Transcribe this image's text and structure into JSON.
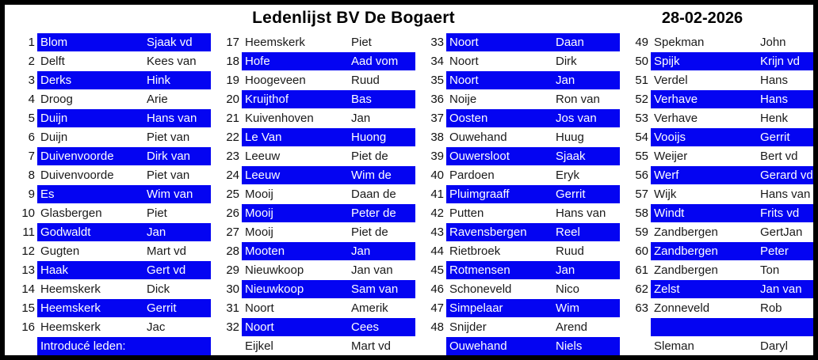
{
  "header": {
    "title": "Ledenlijst BV De Bogaert",
    "date": "28-02-2026"
  },
  "colors": {
    "highlight": "#0404F2",
    "highlight_text": "#FFFFFF",
    "text": "#1A1A1A",
    "border": "#000000"
  },
  "columns": [
    {
      "members": [
        {
          "nr": "1",
          "surname": "Blom",
          "firstname": "Sjaak vd",
          "highlighted": true
        },
        {
          "nr": "2",
          "surname": "Delft",
          "firstname": "Kees van",
          "highlighted": false
        },
        {
          "nr": "3",
          "surname": "Derks",
          "firstname": "Hink",
          "highlighted": true
        },
        {
          "nr": "4",
          "surname": "Droog",
          "firstname": "Arie",
          "highlighted": false
        },
        {
          "nr": "5",
          "surname": "Duijn",
          "firstname": "Hans van",
          "highlighted": true
        },
        {
          "nr": "6",
          "surname": "Duijn",
          "firstname": "Piet van",
          "highlighted": false
        },
        {
          "nr": "7",
          "surname": "Duivenvoorde",
          "firstname": "Dirk van",
          "highlighted": true
        },
        {
          "nr": "8",
          "surname": "Duivenvoorde",
          "firstname": "Piet van",
          "highlighted": false
        },
        {
          "nr": "9",
          "surname": "Es",
          "firstname": "Wim van",
          "highlighted": true
        },
        {
          "nr": "10",
          "surname": "Glasbergen",
          "firstname": "Piet",
          "highlighted": false
        },
        {
          "nr": "11",
          "surname": "Godwaldt",
          "firstname": "Jan",
          "highlighted": true
        },
        {
          "nr": "12",
          "surname": "Gugten",
          "firstname": "Mart vd",
          "highlighted": false
        },
        {
          "nr": "13",
          "surname": "Haak",
          "firstname": "Gert vd",
          "highlighted": true
        },
        {
          "nr": "14",
          "surname": "Heemskerk",
          "firstname": "Dick",
          "highlighted": false
        },
        {
          "nr": "15",
          "surname": "Heemskerk",
          "firstname": "Gerrit",
          "highlighted": true
        },
        {
          "nr": "16",
          "surname": "Heemskerk",
          "firstname": "Jac",
          "highlighted": false
        }
      ],
      "footer": {
        "type": "intro-label",
        "text": "Introducé leden:",
        "highlighted": true
      }
    },
    {
      "members": [
        {
          "nr": "17",
          "surname": "Heemskerk",
          "firstname": "Piet",
          "highlighted": false
        },
        {
          "nr": "18",
          "surname": "Hofe",
          "firstname": "Aad vom",
          "highlighted": true
        },
        {
          "nr": "19",
          "surname": "Hoogeveen",
          "firstname": "Ruud",
          "highlighted": false
        },
        {
          "nr": "20",
          "surname": "Kruijthof",
          "firstname": "Bas",
          "highlighted": true
        },
        {
          "nr": "21",
          "surname": "Kuivenhoven",
          "firstname": "Jan",
          "highlighted": false
        },
        {
          "nr": "22",
          "surname": "Le Van",
          "firstname": "Huong",
          "highlighted": true
        },
        {
          "nr": "23",
          "surname": "Leeuw",
          "firstname": "Piet de",
          "highlighted": false
        },
        {
          "nr": "24",
          "surname": "Leeuw",
          "firstname": "Wim de",
          "highlighted": true
        },
        {
          "nr": "25",
          "surname": "Mooij",
          "firstname": "Daan de",
          "highlighted": false
        },
        {
          "nr": "26",
          "surname": "Mooij",
          "firstname": "Peter de",
          "highlighted": true
        },
        {
          "nr": "27",
          "surname": "Mooij",
          "firstname": "Piet de",
          "highlighted": false
        },
        {
          "nr": "28",
          "surname": "Mooten",
          "firstname": "Jan",
          "highlighted": true
        },
        {
          "nr": "29",
          "surname": "Nieuwkoop",
          "firstname": "Jan van",
          "highlighted": false
        },
        {
          "nr": "30",
          "surname": "Nieuwkoop",
          "firstname": "Sam van",
          "highlighted": true
        },
        {
          "nr": "31",
          "surname": "Noort",
          "firstname": "Amerik",
          "highlighted": false
        },
        {
          "nr": "32",
          "surname": "Noort",
          "firstname": "Cees",
          "highlighted": true
        }
      ],
      "footer": {
        "type": "guest",
        "surname": "Eijkel",
        "firstname": "Mart vd",
        "highlighted": false
      }
    },
    {
      "members": [
        {
          "nr": "33",
          "surname": "Noort",
          "firstname": "Daan",
          "highlighted": true
        },
        {
          "nr": "34",
          "surname": "Noort",
          "firstname": "Dirk",
          "highlighted": false
        },
        {
          "nr": "35",
          "surname": "Noort",
          "firstname": "Jan",
          "highlighted": true
        },
        {
          "nr": "36",
          "surname": "Noije",
          "firstname": "Ron van",
          "highlighted": false
        },
        {
          "nr": "37",
          "surname": "Oosten",
          "firstname": "Jos van",
          "highlighted": true
        },
        {
          "nr": "38",
          "surname": "Ouwehand",
          "firstname": "Huug",
          "highlighted": false
        },
        {
          "nr": "39",
          "surname": "Ouwersloot",
          "firstname": "Sjaak",
          "highlighted": true
        },
        {
          "nr": "40",
          "surname": "Pardoen",
          "firstname": "Eryk",
          "highlighted": false
        },
        {
          "nr": "41",
          "surname": "Pluimgraaff",
          "firstname": "Gerrit",
          "highlighted": true
        },
        {
          "nr": "42",
          "surname": "Putten",
          "firstname": "Hans van",
          "highlighted": false
        },
        {
          "nr": "43",
          "surname": "Ravensbergen",
          "firstname": "Reel",
          "highlighted": true
        },
        {
          "nr": "44",
          "surname": "Rietbroek",
          "firstname": "Ruud",
          "highlighted": false
        },
        {
          "nr": "45",
          "surname": "Rotmensen",
          "firstname": "Jan",
          "highlighted": true
        },
        {
          "nr": "46",
          "surname": "Schoneveld",
          "firstname": "Nico",
          "highlighted": false
        },
        {
          "nr": "47",
          "surname": "Simpelaar",
          "firstname": "Wim",
          "highlighted": true
        },
        {
          "nr": "48",
          "surname": "Snijder",
          "firstname": "Arend",
          "highlighted": false
        }
      ],
      "footer": {
        "type": "guest",
        "surname": "Ouwehand",
        "firstname": "Niels",
        "highlighted": true
      }
    },
    {
      "members": [
        {
          "nr": "49",
          "surname": "Spekman",
          "firstname": "John",
          "highlighted": false
        },
        {
          "nr": "50",
          "surname": "Spijk",
          "firstname": "Krijn vd",
          "highlighted": true
        },
        {
          "nr": "51",
          "surname": "Verdel",
          "firstname": "Hans",
          "highlighted": false
        },
        {
          "nr": "52",
          "surname": "Verhave",
          "firstname": "Hans",
          "highlighted": true
        },
        {
          "nr": "53",
          "surname": "Verhave",
          "firstname": "Henk",
          "highlighted": false
        },
        {
          "nr": "54",
          "surname": "Vooijs",
          "firstname": "Gerrit",
          "highlighted": true
        },
        {
          "nr": "55",
          "surname": "Weijer",
          "firstname": "Bert vd",
          "highlighted": false
        },
        {
          "nr": "56",
          "surname": "Werf",
          "firstname": "Gerard vd",
          "highlighted": true
        },
        {
          "nr": "57",
          "surname": "Wijk",
          "firstname": "Hans van",
          "highlighted": false
        },
        {
          "nr": "58",
          "surname": "Windt",
          "firstname": "Frits vd",
          "highlighted": true
        },
        {
          "nr": "59",
          "surname": "Zandbergen",
          "firstname": "GertJan",
          "highlighted": false
        },
        {
          "nr": "60",
          "surname": "Zandbergen",
          "firstname": "Peter",
          "highlighted": true
        },
        {
          "nr": "61",
          "surname": "Zandbergen",
          "firstname": "Ton",
          "highlighted": false
        },
        {
          "nr": "62",
          "surname": "Zelst",
          "firstname": "Jan van",
          "highlighted": true
        },
        {
          "nr": "63",
          "surname": "Zonneveld",
          "firstname": "Rob",
          "highlighted": false
        },
        {
          "nr": "",
          "surname": "",
          "firstname": "",
          "highlighted": true
        }
      ],
      "footer": {
        "type": "guest",
        "surname": "Sleman",
        "firstname": "Daryl",
        "highlighted": false
      }
    }
  ]
}
